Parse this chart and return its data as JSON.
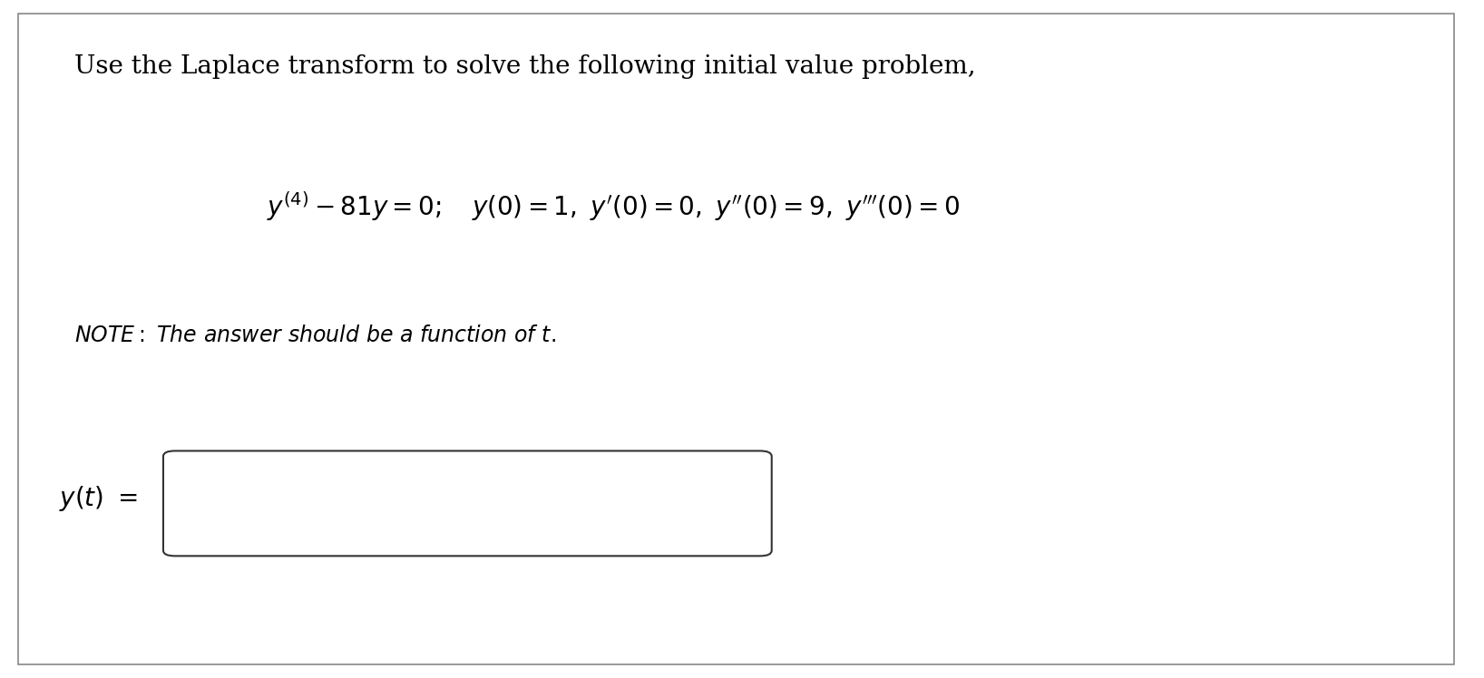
{
  "background_color": "#ffffff",
  "border_color": "#888888",
  "title_text": "Use the Laplace transform to solve the following initial value problem,",
  "title_fontsize": 20,
  "equation_fontsize": 20,
  "note_fontsize": 17,
  "label_fontsize": 20,
  "fig_width": 16.36,
  "fig_height": 7.48
}
